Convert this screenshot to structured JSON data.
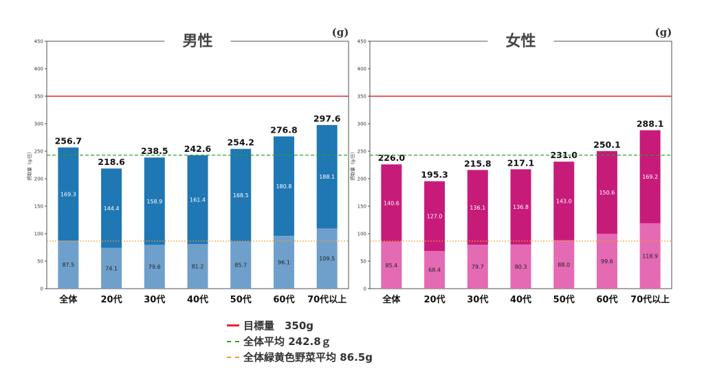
{
  "unit_label": "(g)",
  "y_axis_label": "摂取量（g/日）",
  "ylim": [
    0,
    450
  ],
  "yticks": [
    0,
    50,
    100,
    150,
    200,
    250,
    300,
    350,
    400,
    450
  ],
  "reference_lines": {
    "target": 350,
    "overall_average": 242.8,
    "green_yellow_average": 86.5
  },
  "legend": {
    "target_label": "目標量　350g",
    "overall_avg_label": "全体平均 242.8ｇ",
    "gy_avg_label": "全体緑黄色野菜平均 86.5g"
  },
  "colors": {
    "male_dark": "#1f77b4",
    "male_light": "#6fa0cc",
    "female_dark": "#c71b7a",
    "female_light": "#e46ab3",
    "target_line": "#e8242b",
    "overall_line": "#2e9e2e",
    "gy_line": "#f39c28"
  },
  "chart_data": [
    {
      "type": "bar",
      "title": "男性",
      "categories": [
        "全体",
        "20代",
        "30代",
        "40代",
        "50代",
        "60代",
        "70代以上"
      ],
      "totals": [
        256.7,
        218.6,
        238.5,
        242.6,
        254.2,
        276.8,
        297.6
      ],
      "series": [
        {
          "values": [
            87.5,
            74.1,
            79.6,
            81.2,
            85.7,
            96.1,
            109.5
          ]
        },
        {
          "values": [
            169.3,
            144.4,
            158.9,
            161.4,
            168.5,
            180.8,
            188.1
          ]
        }
      ],
      "ylim": [
        0,
        450
      ]
    },
    {
      "type": "bar",
      "title": "女性",
      "categories": [
        "全体",
        "20代",
        "30代",
        "40代",
        "50代",
        "60代",
        "70代以上"
      ],
      "totals": [
        226.0,
        195.3,
        215.8,
        217.1,
        231.0,
        250.1,
        288.1
      ],
      "series": [
        {
          "values": [
            85.4,
            68.4,
            79.7,
            80.3,
            88.0,
            99.6,
            118.9
          ]
        },
        {
          "values": [
            140.6,
            127.0,
            136.1,
            136.8,
            143.0,
            150.6,
            169.2
          ]
        }
      ],
      "ylim": [
        0,
        450
      ]
    }
  ]
}
